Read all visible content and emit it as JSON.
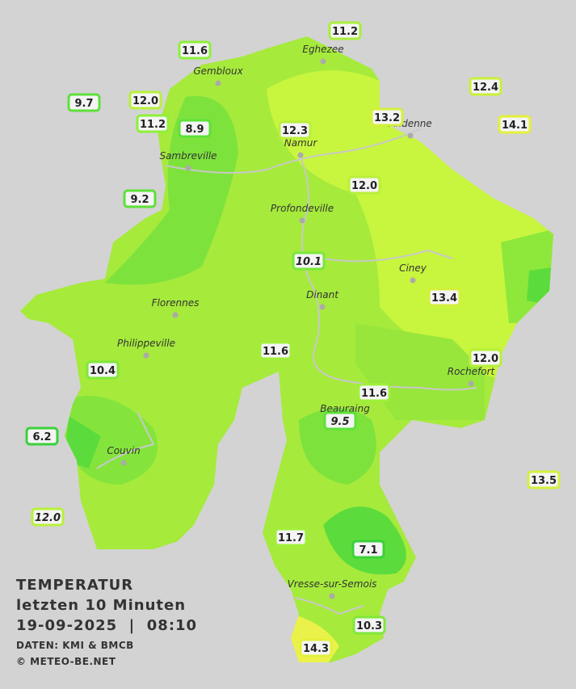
{
  "title": {
    "line1": "TEMPERATUR",
    "line2": "letzten 10 Minuten",
    "line3": "19-09-2025  |  08:10",
    "credit1": "DATEN: KMI & BMCB",
    "credit2": "© METEO-BE.NET"
  },
  "cities": [
    "Eghezee",
    "Gembloux",
    "Andenne",
    "Namur",
    "Sambreville",
    "Profondeville",
    "Ciney",
    "Dinant",
    "Florennes",
    "Philippeville",
    "Rochefort",
    "Beauraing",
    "Couvin",
    "Vresse-sur-Semois"
  ],
  "stations": [
    {
      "label": "11.2",
      "color": "#a8f03a"
    },
    {
      "label": "11.6",
      "color": "#8ef03a"
    },
    {
      "label": "12.4",
      "color": "#c8f03a"
    },
    {
      "label": "9.7",
      "color": "#5ee03a"
    },
    {
      "label": "12.0",
      "color": "#b8f03a"
    },
    {
      "label": "11.2",
      "color": "#8ef03a"
    },
    {
      "label": "8.9",
      "color": "#5ee03a"
    },
    {
      "label": "12.3",
      "color": "#b8f03a"
    },
    {
      "label": "13.2",
      "color": "#d4f03a"
    },
    {
      "label": "14.1",
      "color": "#e4f03a"
    },
    {
      "label": "9.2",
      "color": "#5ee03a"
    },
    {
      "label": "12.0",
      "color": "#b8f03a"
    },
    {
      "label": "10.1",
      "color": "#78e83a",
      "italic": true
    },
    {
      "label": "13.4",
      "color": "#d4f03a"
    },
    {
      "label": "11.6",
      "color": "#a0f03a"
    },
    {
      "label": "10.4",
      "color": "#80e83a"
    },
    {
      "label": "12.0",
      "color": "#b8f03a"
    },
    {
      "label": "11.6",
      "color": "#a0f03a"
    },
    {
      "label": "9.5",
      "color": "#5ee03a",
      "italic": true
    },
    {
      "label": "6.2",
      "color": "#3cd03a"
    },
    {
      "label": "13.5",
      "color": "#d4f03a"
    },
    {
      "label": "12.0",
      "color": "#b8f03a",
      "italic": true
    },
    {
      "label": "11.7",
      "color": "#a0f03a"
    },
    {
      "label": "7.1",
      "color": "#3cd03a"
    },
    {
      "label": "10.3",
      "color": "#80e83a"
    },
    {
      "label": "14.3",
      "color": "#e4f03a"
    }
  ]
}
